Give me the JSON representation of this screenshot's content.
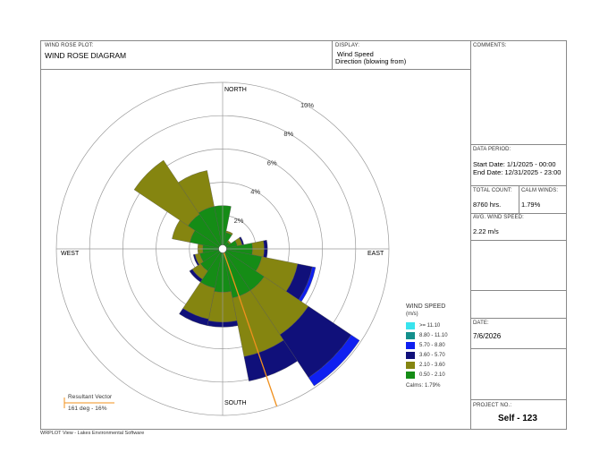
{
  "header": {
    "plot_label": "WIND ROSE PLOT:",
    "plot_title": "WIND ROSE DIAGRAM",
    "display_label": "DISPLAY:",
    "display_line1": "Wind Speed",
    "display_line2": "Direction (blowing from)",
    "comments_label": "COMMENTS:"
  },
  "info": {
    "data_period_label": "DATA PERIOD:",
    "start_date": "Start Date: 1/1/2025 - 00:00",
    "end_date": "End Date: 12/31/2025 - 23:00",
    "total_count_label": "TOTAL COUNT:",
    "total_count": "8760 hrs.",
    "calm_winds_label": "CALM WINDS:",
    "calm_winds": "1.79%",
    "avg_speed_label": "AVG. WIND SPEED:",
    "avg_speed": "2.22 m/s",
    "date_label": "DATE:",
    "date": "7/6/2026",
    "project_label": "PROJECT NO.:",
    "project": "Self - 123"
  },
  "footer": "WRPLOT View - Lakes Environmental Software",
  "resultant": {
    "label": "Resultant Vector",
    "value": "161 deg - 16%",
    "direction_deg": 161,
    "color": "#f0901e"
  },
  "legend": {
    "title": "WIND SPEED",
    "units": "(m/s)",
    "calms": "Calms: 1.79%",
    "items": [
      {
        "label": ">= 11.10",
        "color": "#39e4ee"
      },
      {
        "label": "8.80 - 11.10",
        "color": "#138f8b"
      },
      {
        "label": "5.70 - 8.80",
        "color": "#0f20f0"
      },
      {
        "label": "3.60 - 5.70",
        "color": "#10107a"
      },
      {
        "label": "2.10 - 3.60",
        "color": "#858510"
      },
      {
        "label": "0.50 - 2.10",
        "color": "#158c16"
      }
    ]
  },
  "chart_data": {
    "type": "windrose",
    "title": "WIND ROSE DIAGRAM",
    "direction_labels": {
      "north": "NORTH",
      "east": "EAST",
      "south": "SOUTH",
      "west": "WEST"
    },
    "ring_labels": [
      "2%",
      "4%",
      "6%",
      "8%",
      "10%"
    ],
    "rings": [
      2,
      4,
      6,
      8,
      10
    ],
    "rmax": 10,
    "sector_width_deg": 22.5,
    "classes": [
      "0.50 - 2.10",
      "2.10 - 3.60",
      "3.60 - 5.70",
      "5.70 - 8.80",
      "8.80 - 11.10",
      ">= 11.10"
    ],
    "sectors": [
      {
        "dir": 0,
        "values": [
          2.6,
          0.0,
          0.0,
          0.0,
          0.0,
          0.0
        ]
      },
      {
        "dir": 22.5,
        "values": [
          1.0,
          0.1,
          0.0,
          0.0,
          0.0,
          0.0
        ]
      },
      {
        "dir": 45,
        "values": [
          0.5,
          0.1,
          0.0,
          0.0,
          0.0,
          0.0
        ]
      },
      {
        "dir": 67.5,
        "values": [
          0.9,
          0.3,
          0.1,
          0.0,
          0.0,
          0.0
        ]
      },
      {
        "dir": 90,
        "values": [
          1.8,
          0.7,
          0.2,
          0.0,
          0.0,
          0.0
        ]
      },
      {
        "dir": 112.5,
        "values": [
          2.4,
          2.2,
          0.9,
          0.2,
          0.0,
          0.0
        ]
      },
      {
        "dir": 135,
        "values": [
          3.0,
          3.2,
          3.1,
          0.6,
          0.0,
          0.0
        ]
      },
      {
        "dir": 157.5,
        "values": [
          3.0,
          3.6,
          1.5,
          0.0,
          0.0,
          0.0
        ]
      },
      {
        "dir": 180,
        "values": [
          2.6,
          1.8,
          0.3,
          0.0,
          0.0,
          0.0
        ]
      },
      {
        "dir": 202.5,
        "values": [
          2.4,
          1.9,
          0.4,
          0.0,
          0.0,
          0.0
        ]
      },
      {
        "dir": 225,
        "values": [
          1.6,
          0.6,
          0.2,
          0.0,
          0.0,
          0.0
        ]
      },
      {
        "dir": 247.5,
        "values": [
          1.4,
          0.3,
          0.1,
          0.0,
          0.0,
          0.0
        ]
      },
      {
        "dir": 270,
        "values": [
          1.2,
          0.3,
          0.0,
          0.0,
          0.0,
          0.0
        ]
      },
      {
        "dir": 292.5,
        "values": [
          2.0,
          1.1,
          0.0,
          0.0,
          0.0,
          0.0
        ]
      },
      {
        "dir": 315,
        "values": [
          2.5,
          3.9,
          0.0,
          0.0,
          0.0,
          0.0
        ]
      },
      {
        "dir": 337.5,
        "values": [
          2.6,
          2.2,
          0.0,
          0.0,
          0.0,
          0.0
        ]
      }
    ]
  }
}
